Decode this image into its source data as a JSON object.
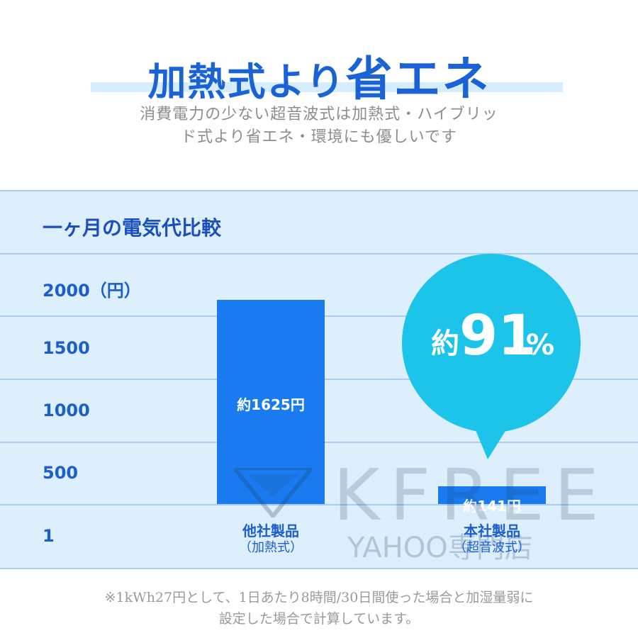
{
  "header": {
    "title_part1": "加熱式より",
    "title_part2": "省エネ",
    "subtitle_line1": "消費電力の少ない超音波式は加熱式・ハイブリッ",
    "subtitle_line2": "ド式より省エネ・環境にも優しいです"
  },
  "chart_data": {
    "type": "bar",
    "title": "一ヶ月の電気代比較",
    "categories": [
      "他社製品",
      "本社製品"
    ],
    "category_sublabels": [
      "（加熱式）",
      "（超音波式）"
    ],
    "values": [
      1625,
      141
    ],
    "value_labels": [
      "約1625円",
      "約141円"
    ],
    "y_ticks": [
      "2000（円）",
      "1500",
      "1000",
      "500",
      "1"
    ],
    "ylim": [
      0,
      2000
    ],
    "bar_color": "#1a7bf0",
    "callout": {
      "prefix": "約",
      "number": "91",
      "suffix": "%",
      "color": "#1cc4ea"
    }
  },
  "watermark": {
    "brand": "KFREE",
    "store": "YAHOO専門店"
  },
  "footnote": {
    "line1": "※1kWh27円として、1日あたり8時間/30日間使った場合と加湿量弱に",
    "line2": "設定した場合で計算しています。"
  }
}
